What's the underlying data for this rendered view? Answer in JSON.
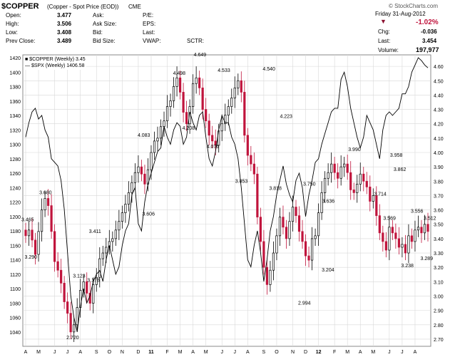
{
  "header": {
    "symbol": "$COPPER",
    "description": "(Copper - Spot Price (EOD))",
    "exchange": "CME",
    "watermark": "© StockCharts.com",
    "date": "Friday  31-Aug-2012",
    "change_pct": "-1.02%",
    "fields": [
      {
        "label": "Open:",
        "value": "3.477"
      },
      {
        "label": "High:",
        "value": "3.506"
      },
      {
        "label": "Low:",
        "value": "3.408"
      },
      {
        "label": "Prev Close:",
        "value": "3.489"
      }
    ],
    "fields2": [
      "Ask:",
      "Ask Size:",
      "Bid:",
      "Bid Size:"
    ],
    "fields3": [
      "P/E:",
      "EPS:",
      "Last:",
      "VWAP:"
    ],
    "sctr_label": "SCTR:",
    "right_fields": [
      {
        "label": "Chg:",
        "value": "-0.036"
      },
      {
        "label": "Last:",
        "value": "3.454"
      },
      {
        "label": "Volume:",
        "value": "197,977"
      }
    ],
    "colors": {
      "down": "#c0143c",
      "up": "#000000",
      "line": "#000000",
      "grid": "#d8d8d8"
    }
  },
  "chart_data": {
    "type": "candlestick",
    "legend": {
      "placement": "top-left",
      "copper": "■ $COPPER (Weekly) 3.45",
      "spx": "— $SPX (Weekly) 1406.58"
    },
    "left_axis": {
      "ticks": [
        1040,
        1060,
        1080,
        1100,
        1120,
        1140,
        1160,
        1180,
        1200,
        1220,
        1240,
        1260,
        1280,
        1300,
        1320,
        1340,
        1360,
        1380,
        1400,
        1420
      ],
      "range": [
        1020,
        1424
      ]
    },
    "right_axis": {
      "ticks": [
        2.7,
        2.8,
        2.9,
        3.0,
        3.1,
        3.2,
        3.3,
        3.4,
        3.5,
        3.6,
        3.7,
        3.8,
        3.9,
        4.0,
        4.1,
        4.2,
        4.3,
        4.4,
        4.5,
        4.6
      ],
      "labels": [
        "2.70",
        "2.80",
        "2.90",
        "3.00",
        "3.10",
        "3.20",
        "3.30",
        "3.40",
        "3.50",
        "3.60",
        "3.70",
        "3.80",
        "3.90",
        "4.00",
        "4.10",
        "4.20",
        "4.30",
        "4.40",
        "4.50",
        "4.60"
      ],
      "range": [
        2.65,
        4.68
      ]
    },
    "x_labels": [
      {
        "label": "A",
        "week": 0
      },
      {
        "label": "M",
        "week": 4
      },
      {
        "label": "J",
        "week": 9
      },
      {
        "label": "J",
        "week": 13
      },
      {
        "label": "A",
        "week": 17
      },
      {
        "label": "S",
        "week": 22
      },
      {
        "label": "O",
        "week": 26
      },
      {
        "label": "N",
        "week": 30
      },
      {
        "label": "D",
        "week": 35
      },
      {
        "label": "11",
        "week": 39
      },
      {
        "label": "F",
        "week": 44
      },
      {
        "label": "M",
        "week": 48
      },
      {
        "label": "A",
        "week": 52
      },
      {
        "label": "M",
        "week": 56
      },
      {
        "label": "J",
        "week": 61
      },
      {
        "label": "J",
        "week": 65
      },
      {
        "label": "A",
        "week": 69
      },
      {
        "label": "S",
        "week": 74
      },
      {
        "label": "O",
        "week": 78
      },
      {
        "label": "N",
        "week": 83
      },
      {
        "label": "D",
        "week": 87
      },
      {
        "label": "12",
        "week": 91
      },
      {
        "label": "F",
        "week": 96
      },
      {
        "label": "M",
        "week": 100
      },
      {
        "label": "A",
        "week": 104
      },
      {
        "label": "M",
        "week": 108
      },
      {
        "label": "J",
        "week": 113
      },
      {
        "label": "J",
        "week": 117
      },
      {
        "label": "A",
        "week": 121
      }
    ],
    "weeks": 126,
    "copper_close": [
      3.42,
      3.46,
      3.39,
      3.29,
      3.45,
      3.6,
      3.68,
      3.63,
      3.45,
      3.24,
      3.18,
      3.09,
      2.96,
      2.88,
      2.75,
      2.8,
      2.92,
      3.04,
      3.1,
      3.02,
      2.95,
      3.08,
      3.13,
      3.26,
      3.3,
      3.34,
      3.38,
      3.4,
      3.46,
      3.52,
      3.58,
      3.64,
      3.72,
      3.79,
      3.86,
      3.9,
      3.85,
      3.78,
      3.88,
      4.0,
      4.08,
      4.1,
      4.18,
      4.22,
      4.32,
      4.36,
      4.46,
      4.52,
      4.42,
      4.28,
      4.2,
      4.32,
      4.48,
      4.52,
      4.45,
      4.3,
      4.22,
      4.12,
      4.08,
      4.05,
      4.15,
      4.2,
      4.26,
      4.32,
      4.38,
      4.45,
      4.5,
      4.42,
      4.12,
      3.98,
      3.92,
      3.85,
      3.55,
      3.38,
      3.2,
      3.08,
      3.18,
      3.3,
      3.42,
      3.55,
      3.48,
      3.4,
      3.52,
      3.62,
      3.56,
      3.45,
      3.38,
      3.28,
      3.25,
      3.4,
      3.42,
      3.58,
      3.72,
      3.82,
      3.86,
      3.92,
      3.86,
      3.82,
      3.9,
      3.92,
      3.86,
      3.74,
      3.72,
      3.78,
      3.85,
      3.8,
      3.76,
      3.66,
      3.7,
      3.56,
      3.44,
      3.38,
      3.32,
      3.48,
      3.44,
      3.4,
      3.34,
      3.36,
      3.3,
      3.42,
      3.38,
      3.46,
      3.48,
      3.44,
      3.5,
      3.45
    ],
    "spx_close": [
      1310,
      1330,
      1345,
      1350,
      1335,
      1340,
      1320,
      1310,
      1280,
      1275,
      1270,
      1250,
      1210,
      1150,
      1090,
      1060,
      1040,
      1075,
      1100,
      1080,
      1090,
      1110,
      1120,
      1125,
      1110,
      1140,
      1160,
      1140,
      1120,
      1130,
      1160,
      1180,
      1190,
      1230,
      1240,
      1190,
      1180,
      1220,
      1245,
      1260,
      1275,
      1290,
      1295,
      1325,
      1310,
      1300,
      1320,
      1330,
      1325,
      1300,
      1310,
      1345,
      1330,
      1320,
      1340,
      1345,
      1310,
      1280,
      1270,
      1290,
      1320,
      1340,
      1330,
      1330,
      1310,
      1300,
      1280,
      1240,
      1190,
      1140,
      1130,
      1160,
      1180,
      1150,
      1110,
      1140,
      1180,
      1200,
      1230,
      1250,
      1270,
      1245,
      1230,
      1220,
      1250,
      1260,
      1240,
      1200,
      1230,
      1250,
      1275,
      1280,
      1300,
      1315,
      1330,
      1345,
      1350,
      1350,
      1390,
      1400,
      1380,
      1350,
      1330,
      1310,
      1295,
      1310,
      1340,
      1330,
      1320,
      1300,
      1280,
      1320,
      1340,
      1345,
      1340,
      1345,
      1350,
      1370,
      1370,
      1380,
      1400,
      1410,
      1420,
      1416,
      1410,
      1406
    ],
    "annotations": [
      {
        "text": "3.465",
        "week": 0,
        "price": 3.52,
        "dx": -6
      },
      {
        "text": "3.290",
        "week": 1,
        "price": 3.26,
        "dx": -6
      },
      {
        "text": "3.680",
        "week": 6,
        "price": 3.71,
        "dx": -8
      },
      {
        "text": "3.123",
        "week": 16,
        "price": 3.13,
        "dx": -6
      },
      {
        "text": "2.720",
        "week": 14,
        "price": 2.7,
        "dx": -6
      },
      {
        "text": "3.178",
        "week": 20,
        "price": 3.1,
        "dx": -4
      },
      {
        "text": "3.411",
        "week": 21,
        "price": 3.44,
        "dx": -6
      },
      {
        "text": "3.606",
        "week": 38,
        "price": 3.56,
        "dx": -8
      },
      {
        "text": "4.083",
        "week": 37,
        "price": 4.11,
        "dx": -10
      },
      {
        "text": "4.498",
        "week": 48,
        "price": 4.54,
        "dx": -10
      },
      {
        "text": "4.208",
        "week": 50,
        "price": 4.16,
        "dx": -6
      },
      {
        "text": "4.649",
        "week": 54,
        "price": 4.67,
        "dx": -8
      },
      {
        "text": "4.076",
        "week": 58,
        "price": 4.03,
        "dx": -8
      },
      {
        "text": "4.533",
        "week": 61,
        "price": 4.56,
        "dx": -6
      },
      {
        "text": "3.853",
        "week": 66,
        "price": 3.79,
        "dx": -4
      },
      {
        "text": "4.540",
        "week": 75,
        "price": 4.57,
        "dx": -6
      },
      {
        "text": "4.223",
        "week": 79,
        "price": 4.24,
        "dx": 0
      },
      {
        "text": "3.818",
        "week": 77,
        "price": 3.74,
        "dx": -6
      },
      {
        "text": "2.994",
        "week": 86,
        "price": 2.94,
        "dx": -6
      },
      {
        "text": "3.750",
        "week": 88,
        "price": 3.77,
        "dx": -8
      },
      {
        "text": "3.636",
        "week": 93,
        "price": 3.65,
        "dx": -4
      },
      {
        "text": "3.204",
        "week": 92,
        "price": 3.17,
        "dx": 0
      },
      {
        "text": "3.990",
        "week": 102,
        "price": 4.01,
        "dx": -8
      },
      {
        "text": "3.714",
        "week": 110,
        "price": 3.7,
        "dx": -8
      },
      {
        "text": "3.958",
        "week": 115,
        "price": 3.97,
        "dx": -8
      },
      {
        "text": "3.862",
        "week": 113,
        "price": 3.87,
        "dx": 6
      },
      {
        "text": "3.569",
        "week": 112,
        "price": 3.53,
        "dx": -4
      },
      {
        "text": "3.238",
        "week": 118,
        "price": 3.2,
        "dx": -6
      },
      {
        "text": "3.556",
        "week": 121,
        "price": 3.58,
        "dx": -6
      },
      {
        "text": "3.289",
        "week": 124,
        "price": 3.25,
        "dx": -6
      },
      {
        "text": "3.512",
        "week": 128,
        "price": 3.53,
        "dx": -6
      }
    ]
  }
}
